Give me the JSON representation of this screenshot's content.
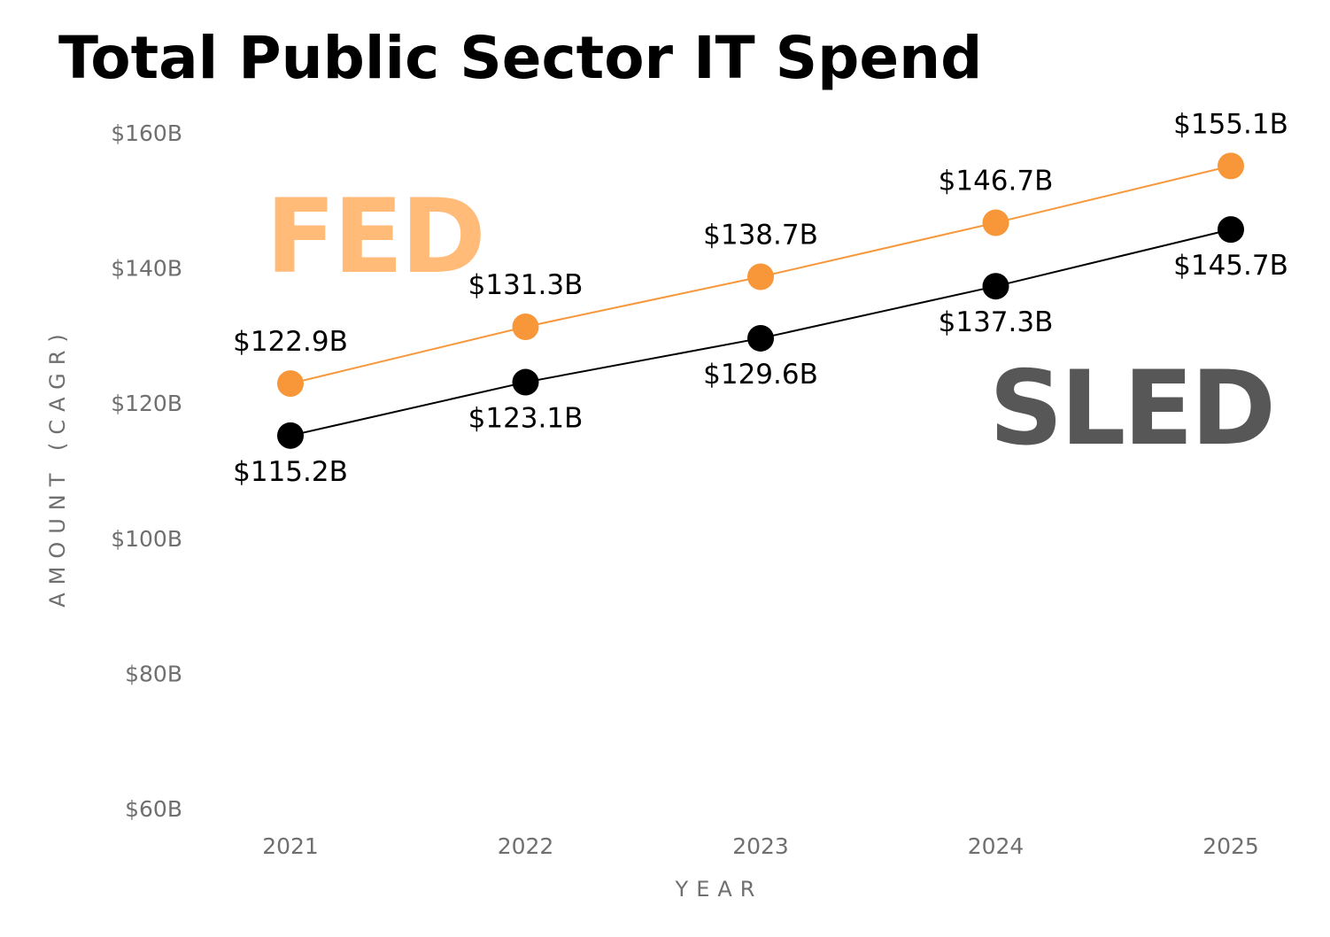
{
  "chart_data": {
    "type": "line",
    "title": "Total Public Sector IT Spend",
    "xlabel": "YEAR",
    "ylabel": "AMOUNT (CAGR)",
    "x": [
      "2021",
      "2022",
      "2023",
      "2024",
      "2025"
    ],
    "yticks": [
      60,
      80,
      100,
      120,
      140,
      160
    ],
    "ytick_labels": [
      "$60B",
      "$80B",
      "$100B",
      "$120B",
      "$140B",
      "$160B"
    ],
    "ylim": [
      60,
      160
    ],
    "grid": false,
    "series": [
      {
        "name": "FED",
        "color": "#f7973a",
        "tag_color": "#ffbb77",
        "values": [
          122.9,
          131.3,
          138.7,
          146.7,
          155.1
        ],
        "labels": [
          "$122.9B",
          "$131.3B",
          "$138.7B",
          "$146.7B",
          "$155.1B"
        ],
        "label_position": "above"
      },
      {
        "name": "SLED",
        "color": "#000000",
        "tag_color": "#575757",
        "values": [
          115.2,
          123.1,
          129.6,
          137.3,
          145.7
        ],
        "labels": [
          "$115.2B",
          "$123.1B",
          "$129.6B",
          "$137.3B",
          "$145.7B"
        ],
        "label_position": "below"
      }
    ]
  }
}
